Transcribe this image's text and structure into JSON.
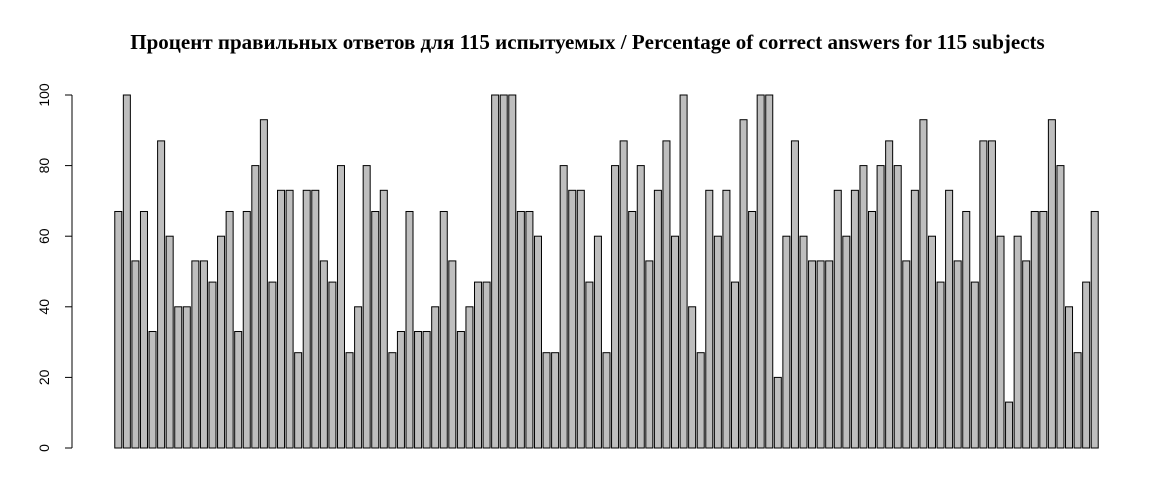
{
  "chart_data": {
    "type": "bar",
    "title": "Процент правильных ответов для 115 испытуемых / Percentage of correct answers for 115 subjects",
    "xlabel": "",
    "ylabel": "",
    "ylim": [
      0,
      100
    ],
    "yticks": [
      0,
      20,
      40,
      60,
      80,
      100
    ],
    "grid": false,
    "colors": {
      "bar_fill": "#bebebe",
      "bar_stroke": "#000000"
    },
    "values": [
      67,
      100,
      53,
      67,
      33,
      87,
      60,
      40,
      40,
      53,
      53,
      47,
      60,
      67,
      33,
      67,
      80,
      93,
      47,
      73,
      73,
      27,
      73,
      73,
      53,
      47,
      80,
      27,
      40,
      80,
      67,
      73,
      27,
      33,
      67,
      33,
      33,
      40,
      67,
      53,
      33,
      40,
      47,
      47,
      100,
      100,
      100,
      67,
      67,
      60,
      27,
      27,
      80,
      73,
      73,
      47,
      60,
      27,
      80,
      87,
      67,
      80,
      53,
      73,
      87,
      60,
      100,
      40,
      27,
      73,
      60,
      73,
      47,
      93,
      67,
      100,
      100,
      20,
      60,
      87,
      60,
      53,
      53,
      53,
      73,
      60,
      73,
      80,
      67,
      80,
      87,
      80,
      53,
      73,
      93,
      60,
      47,
      73,
      53,
      67,
      47,
      87,
      87,
      60,
      13,
      60,
      53,
      67,
      67,
      93,
      80,
      40,
      27,
      47,
      67
    ]
  }
}
